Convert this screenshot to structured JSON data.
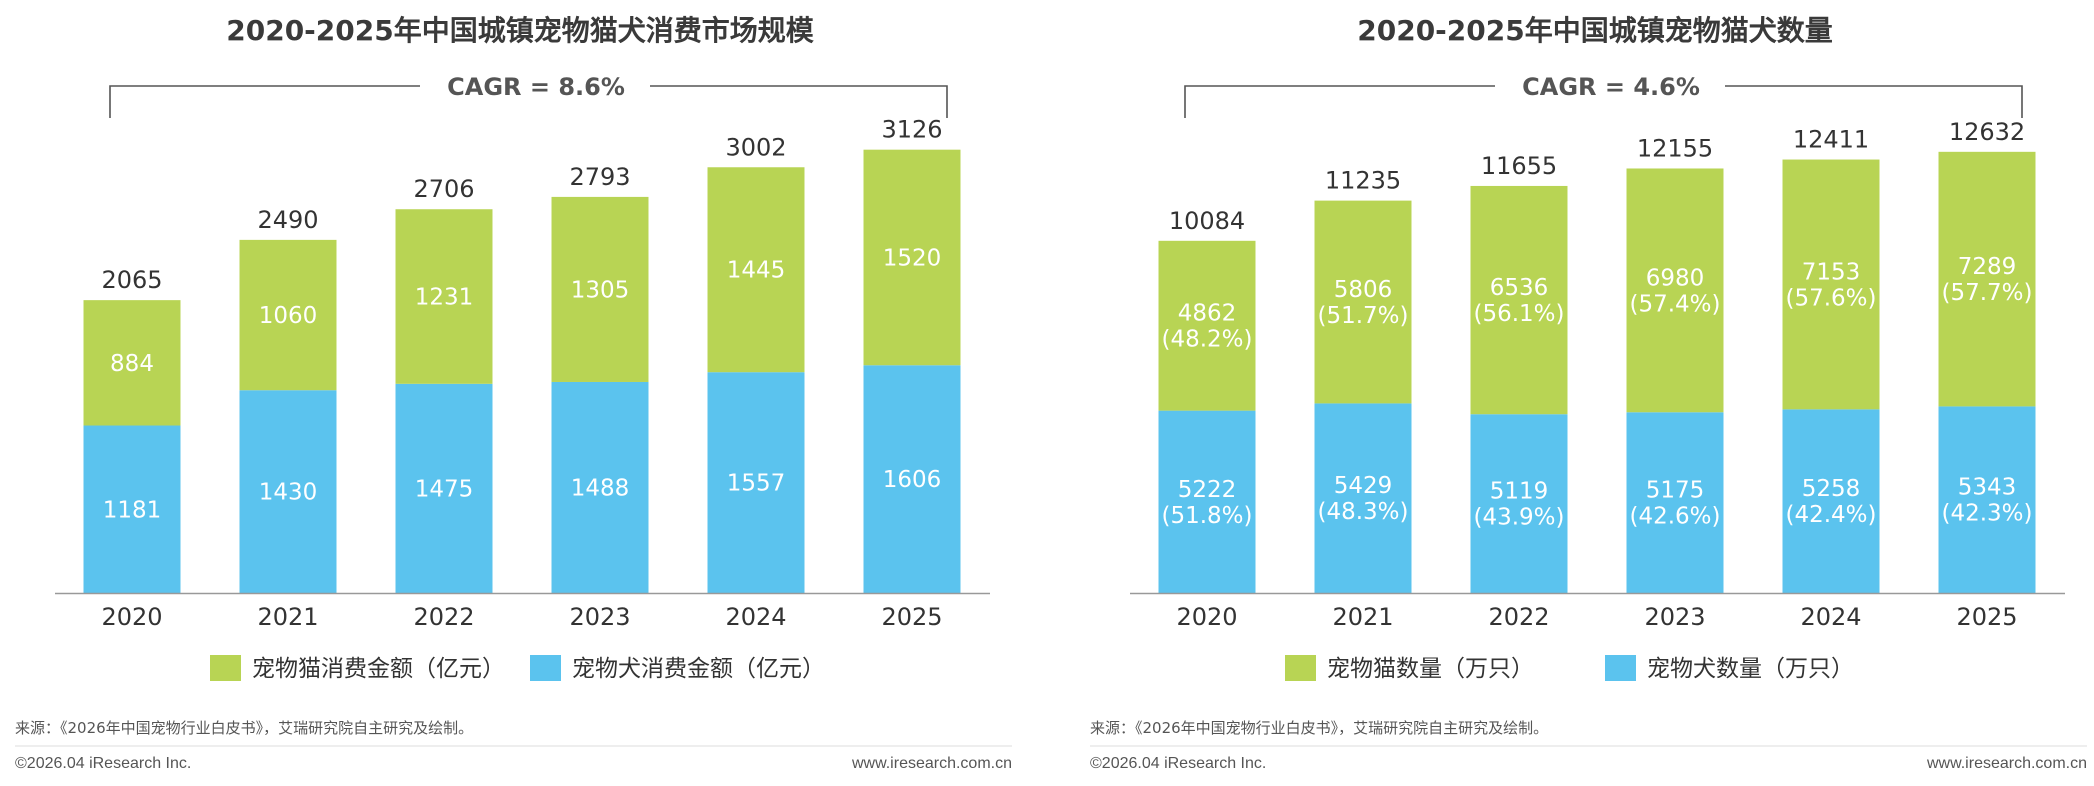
{
  "colors": {
    "dog": "#5bc3ee",
    "cat": "#b8d454",
    "axis": "#999999",
    "bracket": "#555555"
  },
  "chart_data": [
    {
      "type": "bar",
      "stacked": true,
      "title": "2020-2025年中国城镇宠物猫犬消费市场规模",
      "cagr": "CAGR = 8.6%",
      "categories": [
        "2020",
        "2021",
        "2022",
        "2023",
        "2024",
        "2025"
      ],
      "series": [
        {
          "name": "宠物犬消费金额（亿元）",
          "values": [
            1181,
            1430,
            1475,
            1488,
            1557,
            1606
          ],
          "labels": [
            [
              "1181"
            ],
            [
              "1430"
            ],
            [
              "1475"
            ],
            [
              "1488"
            ],
            [
              "1557"
            ],
            [
              "1606"
            ]
          ]
        },
        {
          "name": "宠物猫消费金额（亿元）",
          "values": [
            884,
            1060,
            1231,
            1305,
            1445,
            1520
          ],
          "labels": [
            [
              "884"
            ],
            [
              "1060"
            ],
            [
              "1231"
            ],
            [
              "1305"
            ],
            [
              "1445"
            ],
            [
              "1520"
            ]
          ]
        }
      ],
      "totals": [
        "2065",
        "2490",
        "2706",
        "2793",
        "3002",
        "3126"
      ],
      "legend": [
        "宠物猫消费金额（亿元）",
        "宠物犬消费金额（亿元）"
      ],
      "ylim": [
        0,
        3300
      ],
      "source": "来源：《2026年中国宠物行业白皮书》，艾瑞研究院自主研究及绘制。",
      "copyright": "©2026.04 iResearch Inc.",
      "website": "www.iresearch.com.cn"
    },
    {
      "type": "bar",
      "stacked": true,
      "title": "2020-2025年中国城镇宠物猫犬数量",
      "cagr": "CAGR = 4.6%",
      "categories": [
        "2020",
        "2021",
        "2022",
        "2023",
        "2024",
        "2025"
      ],
      "series": [
        {
          "name": "宠物犬数量（万只）",
          "values": [
            5222,
            5429,
            5119,
            5175,
            5258,
            5343
          ],
          "labels": [
            [
              "5222",
              "(51.8%)"
            ],
            [
              "5429",
              "(48.3%)"
            ],
            [
              "5119",
              "(43.9%)"
            ],
            [
              "5175",
              "(42.6%)"
            ],
            [
              "5258",
              "(42.4%)"
            ],
            [
              "5343",
              "(42.3%)"
            ]
          ]
        },
        {
          "name": "宠物猫数量（万只）",
          "values": [
            4862,
            5806,
            6536,
            6980,
            7153,
            7289
          ],
          "labels": [
            [
              "4862",
              "(48.2%)"
            ],
            [
              "5806",
              "(51.7%)"
            ],
            [
              "6536",
              "(56.1%)"
            ],
            [
              "6980",
              "(57.4%)"
            ],
            [
              "7153",
              "(57.6%)"
            ],
            [
              "7289",
              "(57.7%)"
            ]
          ]
        }
      ],
      "totals": [
        "10084",
        "11235",
        "11655",
        "12155",
        "12411",
        "12632"
      ],
      "legend": [
        "宠物猫数量（万只）",
        "宠物犬数量（万只）"
      ],
      "ylim": [
        0,
        13400
      ],
      "source": "来源：《2026年中国宠物行业白皮书》，艾瑞研究院自主研究及绘制。",
      "copyright": "©2026.04 iResearch Inc.",
      "website": "www.iresearch.com.cn"
    }
  ]
}
